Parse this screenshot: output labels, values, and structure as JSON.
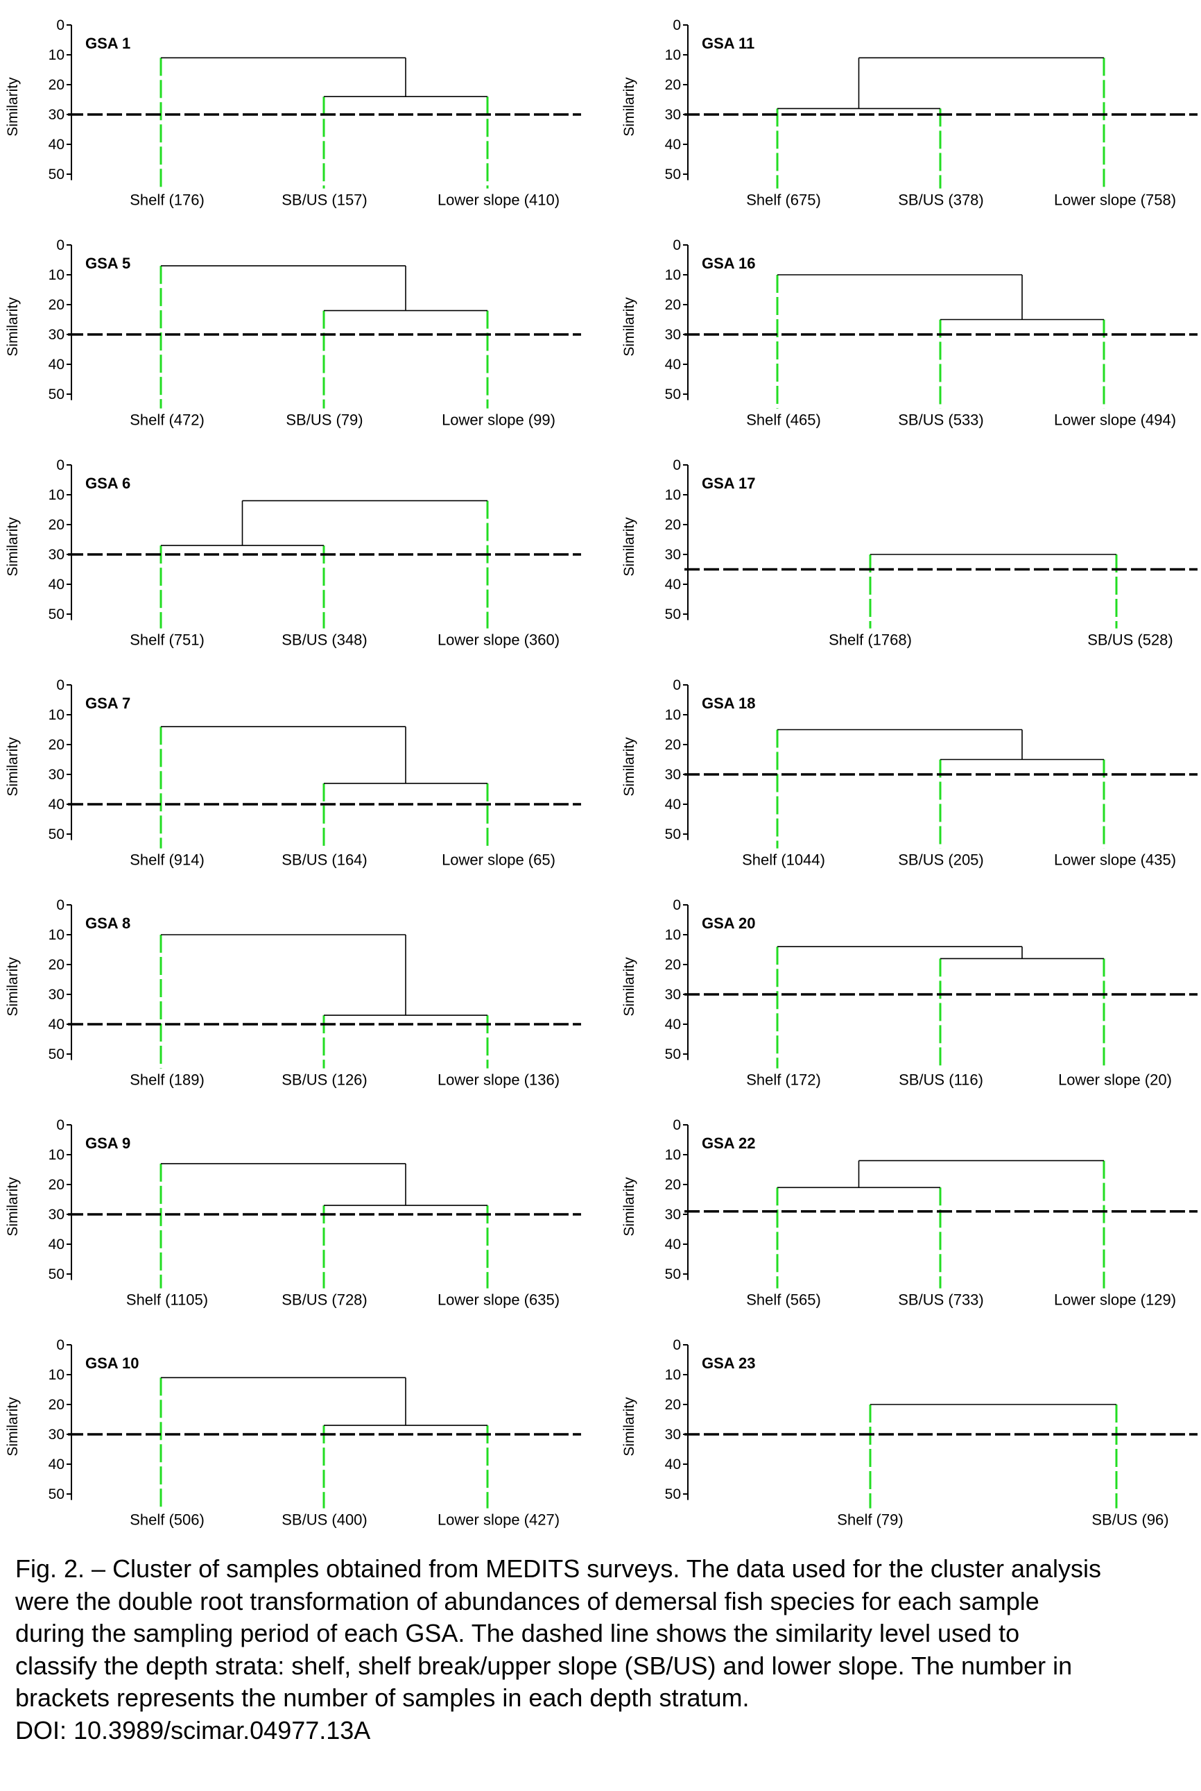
{
  "chart_data": [
    {
      "type": "dendrogram",
      "title": "GSA 1",
      "ylabel": "Similarity",
      "yticks": [
        0,
        10,
        20,
        30,
        40,
        50
      ],
      "ylim": [
        0,
        52
      ],
      "cut_level": 30,
      "leaves": [
        "Shelf (176)",
        "SB/US (157)",
        "Lower slope (410)"
      ],
      "merges": [
        {
          "join": [
            2,
            3
          ],
          "similarity": 24
        },
        {
          "join": [
            1,
            "2+3"
          ],
          "similarity": 11
        }
      ]
    },
    {
      "type": "dendrogram",
      "title": "GSA 11",
      "ylabel": "Similarity",
      "yticks": [
        0,
        10,
        20,
        30,
        40,
        50
      ],
      "ylim": [
        0,
        52
      ],
      "cut_level": 30,
      "leaves": [
        "Shelf (675)",
        "SB/US (378)",
        "Lower slope (758)"
      ],
      "merges": [
        {
          "join": [
            1,
            2
          ],
          "similarity": 28
        },
        {
          "join": [
            "1+2",
            3
          ],
          "similarity": 11
        }
      ]
    },
    {
      "type": "dendrogram",
      "title": "GSA 5",
      "ylabel": "Similarity",
      "yticks": [
        0,
        10,
        20,
        30,
        40,
        50
      ],
      "ylim": [
        0,
        52
      ],
      "cut_level": 30,
      "leaves": [
        "Shelf (472)",
        "SB/US (79)",
        "Lower slope (99)"
      ],
      "merges": [
        {
          "join": [
            2,
            3
          ],
          "similarity": 22
        },
        {
          "join": [
            1,
            "2+3"
          ],
          "similarity": 7
        }
      ]
    },
    {
      "type": "dendrogram",
      "title": "GSA 16",
      "ylabel": "Similarity",
      "yticks": [
        0,
        10,
        20,
        30,
        40,
        50
      ],
      "ylim": [
        0,
        52
      ],
      "cut_level": 30,
      "leaves": [
        "Shelf (465)",
        "SB/US (533)",
        "Lower slope (494)"
      ],
      "merges": [
        {
          "join": [
            2,
            3
          ],
          "similarity": 25
        },
        {
          "join": [
            1,
            "2+3"
          ],
          "similarity": 10
        }
      ]
    },
    {
      "type": "dendrogram",
      "title": "GSA 6",
      "ylabel": "Similarity",
      "yticks": [
        0,
        10,
        20,
        30,
        40,
        50
      ],
      "ylim": [
        0,
        52
      ],
      "cut_level": 30,
      "leaves": [
        "Shelf (751)",
        "SB/US (348)",
        "Lower slope (360)"
      ],
      "merges": [
        {
          "join": [
            1,
            2
          ],
          "similarity": 27
        },
        {
          "join": [
            "1+2",
            3
          ],
          "similarity": 12
        }
      ]
    },
    {
      "type": "dendrogram",
      "title": "GSA 17",
      "ylabel": "Similarity",
      "yticks": [
        0,
        10,
        20,
        30,
        40,
        50
      ],
      "ylim": [
        0,
        52
      ],
      "cut_level": 35,
      "leaves": [
        "Shelf (1768)",
        "SB/US (528)"
      ],
      "merges": [
        {
          "join": [
            1,
            2
          ],
          "similarity": 30
        }
      ]
    },
    {
      "type": "dendrogram",
      "title": "GSA 7",
      "ylabel": "Similarity",
      "yticks": [
        0,
        10,
        20,
        30,
        40,
        50
      ],
      "ylim": [
        0,
        52
      ],
      "cut_level": 40,
      "leaves": [
        "Shelf (914)",
        "SB/US (164)",
        "Lower slope (65)"
      ],
      "merges": [
        {
          "join": [
            2,
            3
          ],
          "similarity": 33
        },
        {
          "join": [
            1,
            "2+3"
          ],
          "similarity": 14
        }
      ]
    },
    {
      "type": "dendrogram",
      "title": "GSA 18",
      "ylabel": "Similarity",
      "yticks": [
        0,
        10,
        20,
        30,
        40,
        50
      ],
      "ylim": [
        0,
        52
      ],
      "cut_level": 30,
      "leaves": [
        "Shelf (1044)",
        "SB/US (205)",
        "Lower slope (435)"
      ],
      "merges": [
        {
          "join": [
            2,
            3
          ],
          "similarity": 25
        },
        {
          "join": [
            1,
            "2+3"
          ],
          "similarity": 15
        }
      ]
    },
    {
      "type": "dendrogram",
      "title": "GSA 8",
      "ylabel": "Similarity",
      "yticks": [
        0,
        10,
        20,
        30,
        40,
        50
      ],
      "ylim": [
        0,
        52
      ],
      "cut_level": 40,
      "leaves": [
        "Shelf (189)",
        "SB/US (126)",
        "Lower slope (136)"
      ],
      "merges": [
        {
          "join": [
            2,
            3
          ],
          "similarity": 37
        },
        {
          "join": [
            1,
            "2+3"
          ],
          "similarity": 10
        }
      ]
    },
    {
      "type": "dendrogram",
      "title": "GSA 20",
      "ylabel": "Similarity",
      "yticks": [
        0,
        10,
        20,
        30,
        40,
        50
      ],
      "ylim": [
        0,
        52
      ],
      "cut_level": 30,
      "leaves": [
        "Shelf (172)",
        "SB/US (116)",
        "Lower slope (20)"
      ],
      "merges": [
        {
          "join": [
            2,
            3
          ],
          "similarity": 18
        },
        {
          "join": [
            1,
            "2+3"
          ],
          "similarity": 14
        }
      ]
    },
    {
      "type": "dendrogram",
      "title": "GSA 9",
      "ylabel": "Similarity",
      "yticks": [
        0,
        10,
        20,
        30,
        40,
        50
      ],
      "ylim": [
        0,
        52
      ],
      "cut_level": 30,
      "leaves": [
        "Shelf (1105)",
        "SB/US (728)",
        "Lower slope (635)"
      ],
      "merges": [
        {
          "join": [
            2,
            3
          ],
          "similarity": 27
        },
        {
          "join": [
            1,
            "2+3"
          ],
          "similarity": 13
        }
      ]
    },
    {
      "type": "dendrogram",
      "title": "GSA 22",
      "ylabel": "Similarity",
      "yticks": [
        0,
        10,
        20,
        30,
        40,
        50
      ],
      "ylim": [
        0,
        52
      ],
      "cut_level": 29,
      "leaves": [
        "Shelf (565)",
        "SB/US (733)",
        "Lower slope (129)"
      ],
      "merges": [
        {
          "join": [
            1,
            2
          ],
          "similarity": 21
        },
        {
          "join": [
            "1+2",
            3
          ],
          "similarity": 12
        }
      ]
    },
    {
      "type": "dendrogram",
      "title": "GSA 10",
      "ylabel": "Similarity",
      "yticks": [
        0,
        10,
        20,
        30,
        40,
        50
      ],
      "ylim": [
        0,
        52
      ],
      "cut_level": 30,
      "leaves": [
        "Shelf (506)",
        "SB/US (400)",
        "Lower slope (427)"
      ],
      "merges": [
        {
          "join": [
            2,
            3
          ],
          "similarity": 27
        },
        {
          "join": [
            1,
            "2+3"
          ],
          "similarity": 11
        }
      ]
    },
    {
      "type": "dendrogram",
      "title": "GSA 23",
      "ylabel": "Similarity",
      "yticks": [
        0,
        10,
        20,
        30,
        40,
        50
      ],
      "ylim": [
        0,
        52
      ],
      "cut_level": 30,
      "leaves": [
        "Shelf (79)",
        "SB/US (96)"
      ],
      "merges": [
        {
          "join": [
            1,
            2
          ],
          "similarity": 20
        }
      ]
    }
  ],
  "colors": {
    "leaf_line": "#22dd22",
    "tree_line": "#000000",
    "cut_line": "#000000"
  },
  "caption": {
    "lines": [
      "Fig. 2. – Cluster of samples obtained from MEDITS surveys. The data used for the cluster analysis",
      "were the double root transformation of abundances of demersal fish species for each sample",
      "during the sampling period of each GSA. The dashed line shows the similarity level used to",
      "classify the depth strata: shelf, shelf break/upper slope (SB/US) and lower slope. The number in",
      "brackets represents the number of samples in each depth stratum.",
      "DOI: 10.3989/scimar.04977.13A"
    ]
  }
}
